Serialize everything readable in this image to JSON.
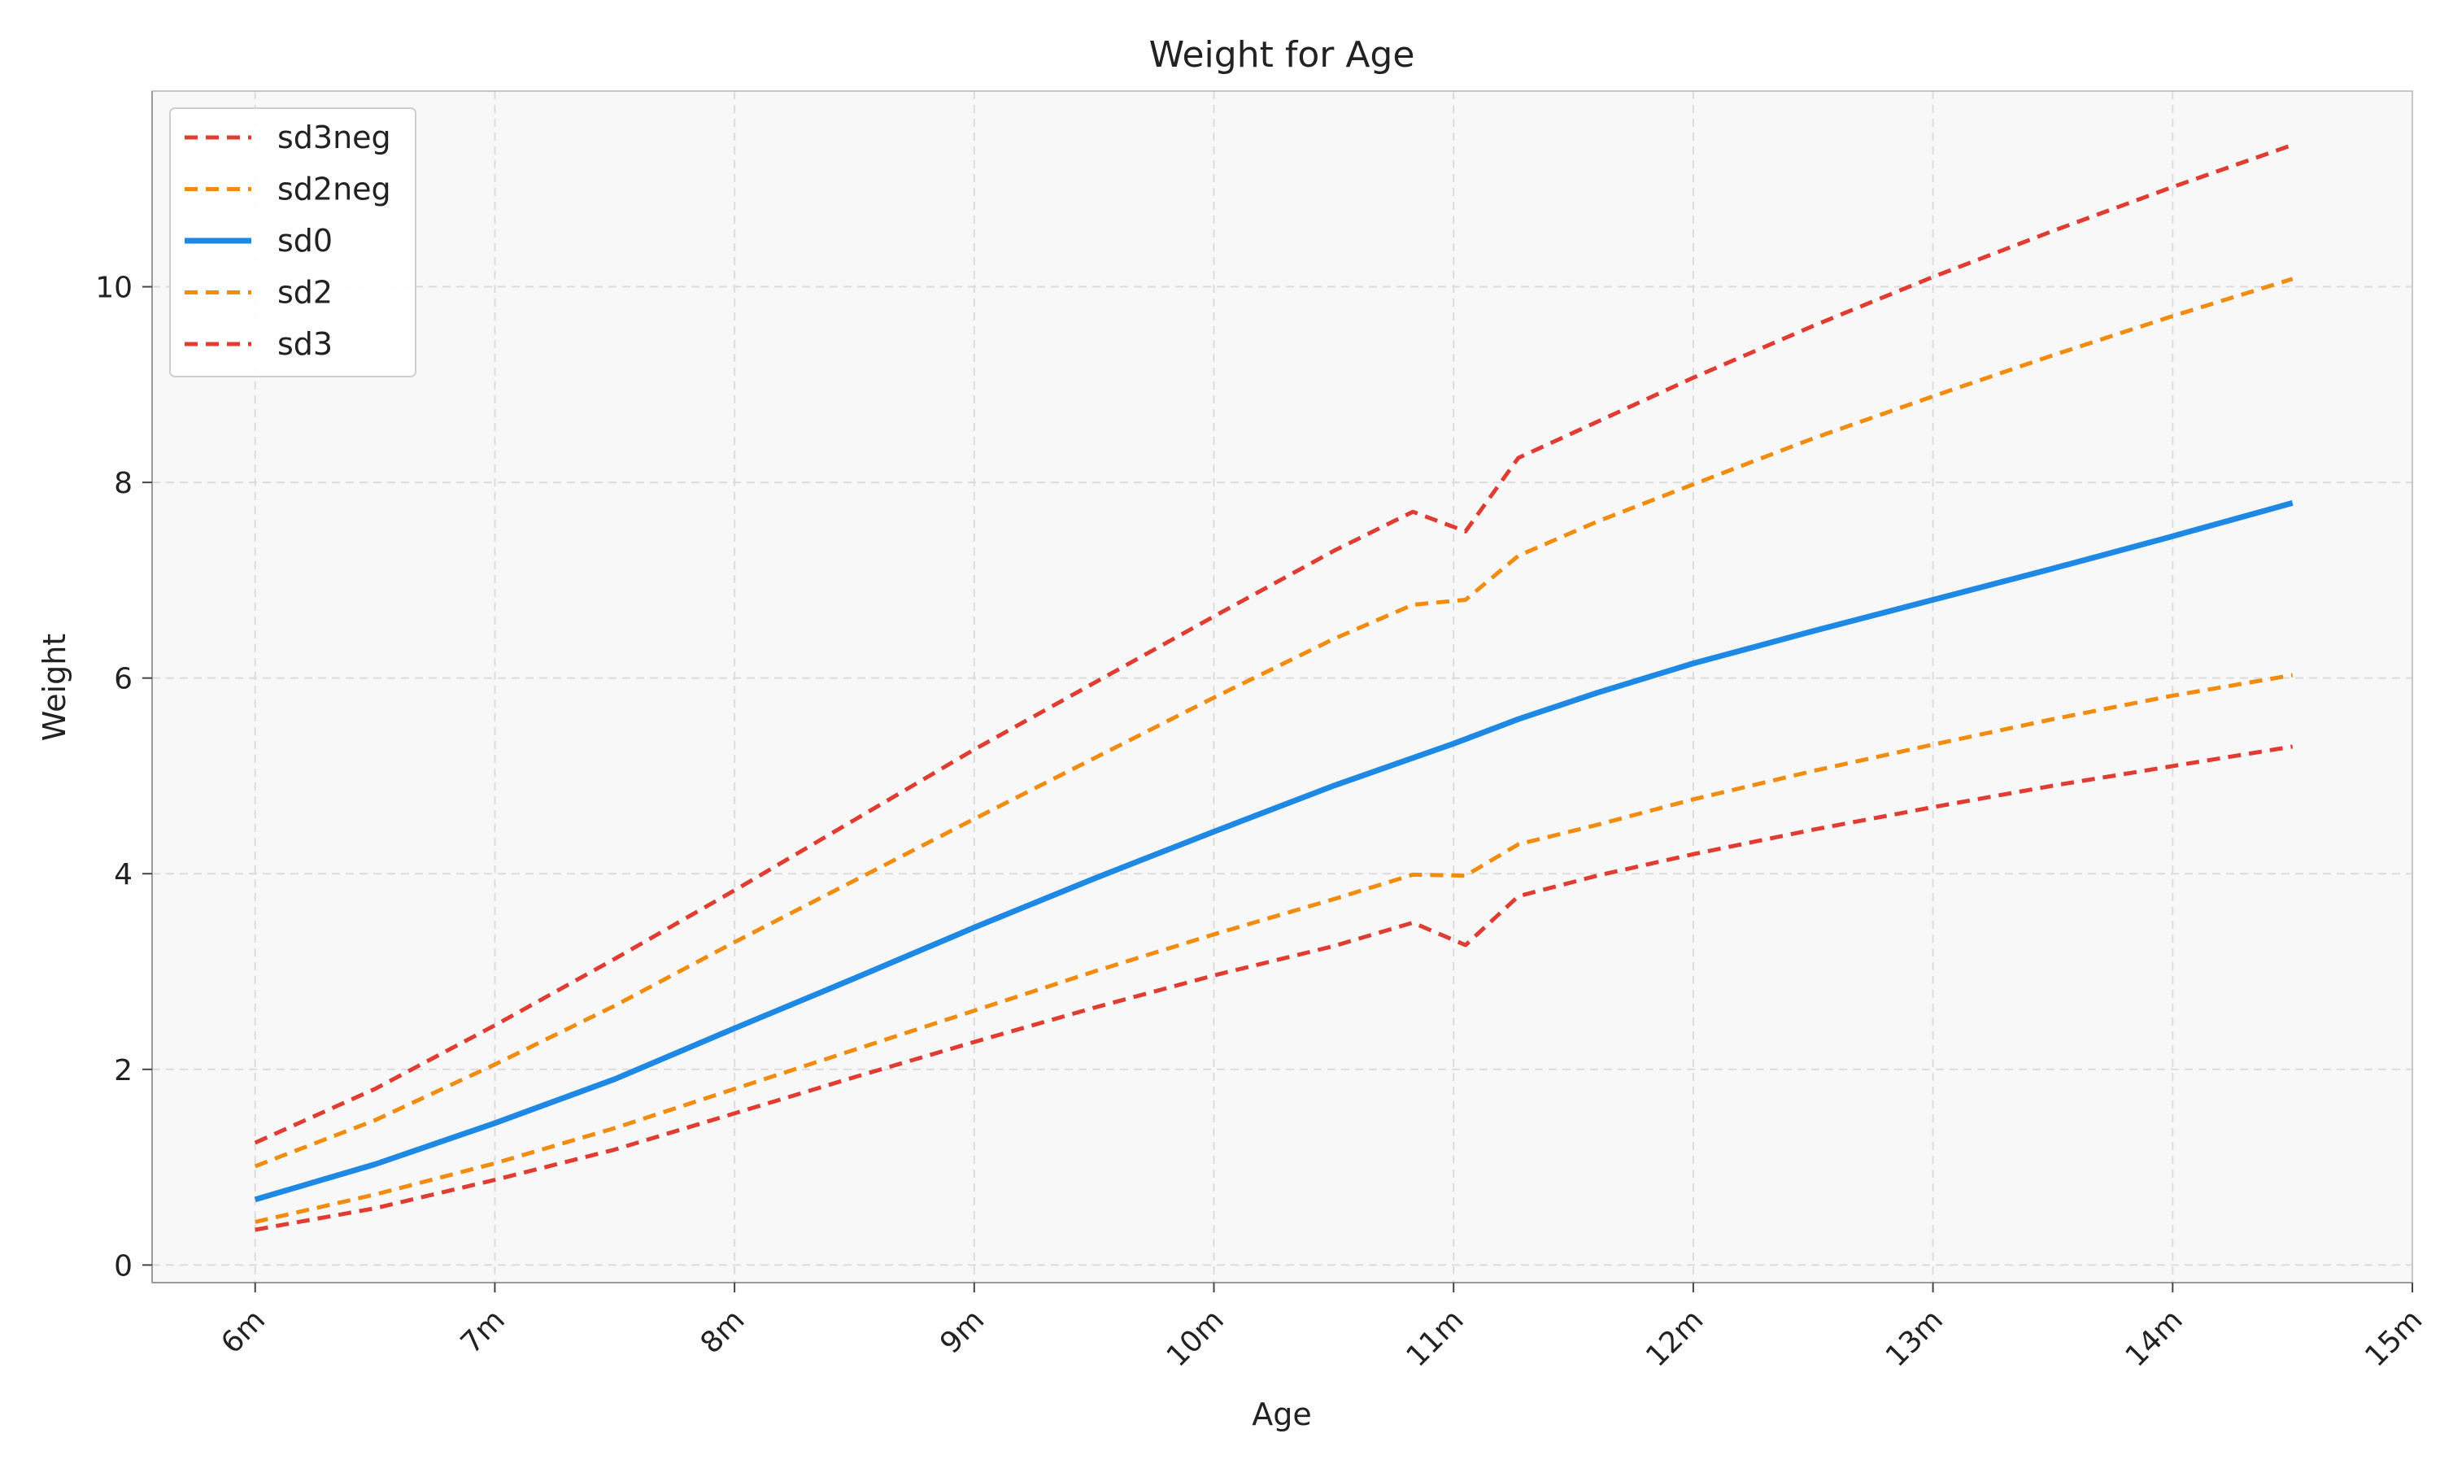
{
  "chart_data": {
    "type": "line",
    "title": "Weight for Age",
    "xlabel": "Age",
    "ylabel": "Weight",
    "x_ticks": [
      {
        "value": 6,
        "label": "6m"
      },
      {
        "value": 7,
        "label": "7m"
      },
      {
        "value": 8,
        "label": "8m"
      },
      {
        "value": 9,
        "label": "9m"
      },
      {
        "value": 10,
        "label": "10m"
      },
      {
        "value": 11,
        "label": "11m"
      },
      {
        "value": 12,
        "label": "12m"
      },
      {
        "value": 13,
        "label": "13m"
      },
      {
        "value": 14,
        "label": "14m"
      },
      {
        "value": 15,
        "label": "15m"
      }
    ],
    "y_ticks": [
      {
        "value": 0,
        "label": "0"
      },
      {
        "value": 2,
        "label": "2"
      },
      {
        "value": 4,
        "label": "4"
      },
      {
        "value": 6,
        "label": "6"
      },
      {
        "value": 8,
        "label": "8"
      },
      {
        "value": 10,
        "label": "10"
      }
    ],
    "xlim": [
      5.57,
      15
    ],
    "ylim": [
      -0.18,
      12.0
    ],
    "grid": true,
    "legend_position": "top-left",
    "background_color": "#f8f8f8",
    "series": [
      {
        "name": "sd3neg",
        "color": "#e03c31",
        "style": "dashed",
        "points": [
          [
            6.0,
            0.36
          ],
          [
            6.5,
            0.58
          ],
          [
            7.0,
            0.87
          ],
          [
            7.5,
            1.18
          ],
          [
            8.0,
            1.55
          ],
          [
            8.5,
            1.92
          ],
          [
            9.0,
            2.28
          ],
          [
            9.5,
            2.63
          ],
          [
            10.0,
            2.96
          ],
          [
            10.5,
            3.26
          ],
          [
            10.83,
            3.5
          ],
          [
            11.05,
            3.27
          ],
          [
            11.27,
            3.77
          ],
          [
            11.6,
            3.98
          ],
          [
            12.0,
            4.2
          ],
          [
            12.5,
            4.45
          ],
          [
            13.0,
            4.68
          ],
          [
            13.5,
            4.9
          ],
          [
            14.0,
            5.1
          ],
          [
            14.5,
            5.3
          ]
        ]
      },
      {
        "name": "sd2neg",
        "color": "#f28c0f",
        "style": "dashed",
        "points": [
          [
            6.0,
            0.44
          ],
          [
            6.5,
            0.72
          ],
          [
            7.0,
            1.04
          ],
          [
            7.5,
            1.4
          ],
          [
            8.0,
            1.8
          ],
          [
            8.5,
            2.2
          ],
          [
            9.0,
            2.6
          ],
          [
            9.5,
            3.0
          ],
          [
            10.0,
            3.38
          ],
          [
            10.5,
            3.74
          ],
          [
            10.83,
            3.99
          ],
          [
            11.05,
            3.98
          ],
          [
            11.27,
            4.3
          ],
          [
            11.6,
            4.5
          ],
          [
            12.0,
            4.76
          ],
          [
            12.5,
            5.05
          ],
          [
            13.0,
            5.32
          ],
          [
            13.5,
            5.58
          ],
          [
            14.0,
            5.82
          ],
          [
            14.5,
            6.03
          ]
        ]
      },
      {
        "name": "sd0",
        "color": "#1e88e5",
        "style": "solid",
        "points": [
          [
            6.0,
            0.67
          ],
          [
            6.5,
            1.03
          ],
          [
            7.0,
            1.45
          ],
          [
            7.5,
            1.9
          ],
          [
            8.0,
            2.42
          ],
          [
            8.5,
            2.93
          ],
          [
            9.0,
            3.45
          ],
          [
            9.5,
            3.95
          ],
          [
            10.0,
            4.43
          ],
          [
            10.5,
            4.9
          ],
          [
            11.0,
            5.33
          ],
          [
            11.27,
            5.58
          ],
          [
            11.6,
            5.85
          ],
          [
            12.0,
            6.15
          ],
          [
            12.5,
            6.48
          ],
          [
            13.0,
            6.8
          ],
          [
            13.5,
            7.12
          ],
          [
            14.0,
            7.45
          ],
          [
            14.5,
            7.79
          ]
        ]
      },
      {
        "name": "sd2",
        "color": "#f28c0f",
        "style": "dashed",
        "points": [
          [
            6.0,
            1.01
          ],
          [
            6.5,
            1.48
          ],
          [
            7.0,
            2.05
          ],
          [
            7.5,
            2.65
          ],
          [
            8.0,
            3.3
          ],
          [
            8.5,
            3.93
          ],
          [
            9.0,
            4.56
          ],
          [
            9.5,
            5.18
          ],
          [
            10.0,
            5.8
          ],
          [
            10.5,
            6.4
          ],
          [
            10.83,
            6.75
          ],
          [
            11.05,
            6.8
          ],
          [
            11.27,
            7.25
          ],
          [
            11.6,
            7.6
          ],
          [
            12.0,
            7.98
          ],
          [
            12.5,
            8.45
          ],
          [
            13.0,
            8.88
          ],
          [
            13.5,
            9.3
          ],
          [
            14.0,
            9.7
          ],
          [
            14.5,
            10.08
          ]
        ]
      },
      {
        "name": "sd3",
        "color": "#e03c31",
        "style": "dashed",
        "points": [
          [
            6.0,
            1.25
          ],
          [
            6.5,
            1.8
          ],
          [
            7.0,
            2.45
          ],
          [
            7.5,
            3.13
          ],
          [
            8.0,
            3.83
          ],
          [
            8.5,
            4.55
          ],
          [
            9.0,
            5.27
          ],
          [
            9.5,
            5.95
          ],
          [
            10.0,
            6.63
          ],
          [
            10.5,
            7.3
          ],
          [
            10.83,
            7.7
          ],
          [
            11.05,
            7.5
          ],
          [
            11.27,
            8.25
          ],
          [
            11.6,
            8.62
          ],
          [
            12.0,
            9.07
          ],
          [
            12.5,
            9.6
          ],
          [
            13.0,
            10.1
          ],
          [
            13.5,
            10.57
          ],
          [
            14.0,
            11.02
          ],
          [
            14.5,
            11.45
          ]
        ]
      }
    ]
  }
}
